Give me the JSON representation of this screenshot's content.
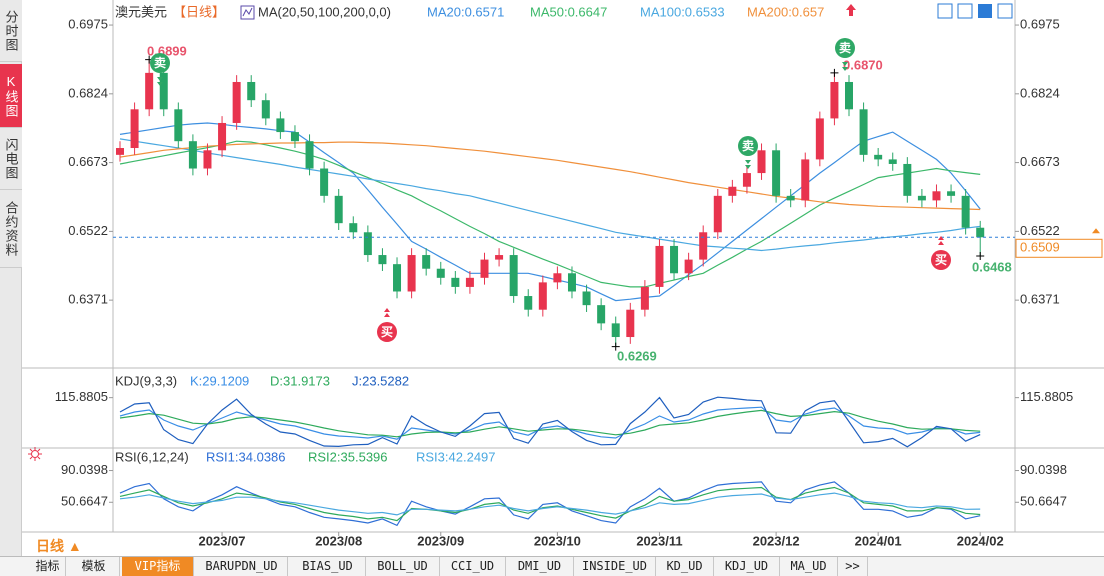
{
  "sidebar": [
    "分时图",
    "K线图",
    "闪电图",
    "合约资料"
  ],
  "toolbar": {
    "period": "日线 ▲",
    "tabs": [
      "指标",
      "模板",
      "VIP指标",
      "BARUPDN_UD",
      "BIAS_UD",
      "BOLL_UD",
      "CCI_UD",
      "DMI_UD",
      "INSIDE_UD",
      "KD_UD",
      "KDJ_UD",
      "MA_UD",
      ">>"
    ]
  },
  "chart_data": [
    {
      "type": "candlestick",
      "title": "澳元美元",
      "subtitle": "【日线】",
      "indicator": "MA(20,50,100,200,0,0)",
      "categories": [
        null,
        null,
        null,
        null,
        null,
        null,
        null,
        "2023/07",
        null,
        null,
        null,
        null,
        null,
        null,
        null,
        "2023/08",
        null,
        null,
        null,
        null,
        null,
        null,
        "2023/09",
        null,
        null,
        null,
        null,
        null,
        null,
        null,
        "2023/10",
        null,
        null,
        null,
        null,
        null,
        null,
        "2023/11",
        null,
        null,
        null,
        null,
        null,
        null,
        null,
        "2023/12",
        null,
        null,
        null,
        null,
        null,
        null,
        "2024/01",
        null,
        null,
        null,
        null,
        null,
        null,
        "2024/02"
      ],
      "open": [
        0.669,
        0.6705,
        0.679,
        0.687,
        0.679,
        0.672,
        0.666,
        0.67,
        0.676,
        0.685,
        0.681,
        0.677,
        0.674,
        0.672,
        0.666,
        0.66,
        0.654,
        0.652,
        0.647,
        0.645,
        0.639,
        0.647,
        0.644,
        0.642,
        0.64,
        0.642,
        0.646,
        0.647,
        0.638,
        0.635,
        0.641,
        0.643,
        0.639,
        0.636,
        0.632,
        0.629,
        0.635,
        0.64,
        0.649,
        0.643,
        0.646,
        0.652,
        0.66,
        0.662,
        0.665,
        0.67,
        0.66,
        0.659,
        0.668,
        0.677,
        0.685,
        0.679,
        0.669,
        0.668,
        0.667,
        0.66,
        0.659,
        0.661,
        0.66,
        0.653
      ],
      "high": [
        0.672,
        0.6805,
        0.6899,
        0.6885,
        0.6805,
        0.6735,
        0.6715,
        0.6775,
        0.6865,
        0.6865,
        0.6825,
        0.6785,
        0.6755,
        0.6735,
        0.6675,
        0.6615,
        0.6555,
        0.6535,
        0.6485,
        0.6465,
        0.6485,
        0.6485,
        0.6455,
        0.6435,
        0.6435,
        0.6475,
        0.6485,
        0.6485,
        0.6395,
        0.6425,
        0.6445,
        0.6445,
        0.6405,
        0.6375,
        0.6335,
        0.6365,
        0.6415,
        0.6505,
        0.6505,
        0.6475,
        0.6535,
        0.6615,
        0.6635,
        0.6665,
        0.6715,
        0.6715,
        0.6615,
        0.6695,
        0.6785,
        0.687,
        0.6865,
        0.6805,
        0.6705,
        0.6695,
        0.6685,
        0.6615,
        0.6625,
        0.6625,
        0.6615,
        0.6545
      ],
      "low": [
        0.6675,
        0.669,
        0.6775,
        0.6775,
        0.6705,
        0.6645,
        0.6645,
        0.6685,
        0.6745,
        0.6795,
        0.6755,
        0.6725,
        0.6705,
        0.6645,
        0.6585,
        0.6525,
        0.6505,
        0.6455,
        0.6435,
        0.6375,
        0.6375,
        0.6425,
        0.6405,
        0.6385,
        0.6385,
        0.6405,
        0.6445,
        0.6365,
        0.6335,
        0.6335,
        0.6395,
        0.6375,
        0.6345,
        0.6305,
        0.6269,
        0.6275,
        0.6335,
        0.6385,
        0.6415,
        0.6415,
        0.6445,
        0.6505,
        0.6585,
        0.6605,
        0.6635,
        0.6585,
        0.6575,
        0.6575,
        0.6665,
        0.6755,
        0.6775,
        0.6675,
        0.6665,
        0.6655,
        0.6585,
        0.6575,
        0.6575,
        0.6585,
        0.6515,
        0.6468
      ],
      "close": [
        0.6705,
        0.679,
        0.687,
        0.679,
        0.672,
        0.666,
        0.67,
        0.676,
        0.685,
        0.681,
        0.677,
        0.674,
        0.672,
        0.666,
        0.66,
        0.654,
        0.652,
        0.647,
        0.645,
        0.639,
        0.647,
        0.644,
        0.642,
        0.64,
        0.642,
        0.646,
        0.647,
        0.638,
        0.635,
        0.641,
        0.643,
        0.639,
        0.636,
        0.632,
        0.629,
        0.635,
        0.64,
        0.649,
        0.643,
        0.646,
        0.652,
        0.66,
        0.662,
        0.665,
        0.67,
        0.66,
        0.659,
        0.668,
        0.677,
        0.685,
        0.679,
        0.669,
        0.668,
        0.667,
        0.66,
        0.659,
        0.661,
        0.66,
        0.653,
        0.6509
      ],
      "up_color": "#e8344e",
      "down_color": "#27a567",
      "price_line_color": "#2f7fd8",
      "price_box_color": "#f08a24",
      "series": [
        {
          "name": "MA20:0.6571",
          "color": "#3d8fe0",
          "values": [
            0.6735,
            0.674,
            0.6745,
            0.675,
            0.6755,
            0.6758,
            0.676,
            0.6757,
            0.6753,
            0.675,
            0.6747,
            0.6743,
            0.674,
            0.6718,
            0.6695,
            0.6673,
            0.665,
            0.6613,
            0.6575,
            0.6538,
            0.65,
            0.6483,
            0.6465,
            0.6448,
            0.643,
            0.643,
            0.643,
            0.643,
            0.643,
            0.6423,
            0.6415,
            0.6408,
            0.64,
            0.6385,
            0.637,
            0.6373,
            0.6377,
            0.638,
            0.6403,
            0.6427,
            0.645,
            0.6475,
            0.65,
            0.6525,
            0.655,
            0.6575,
            0.66,
            0.6625,
            0.665,
            0.6673,
            0.6697,
            0.672,
            0.673,
            0.674,
            0.672,
            0.67,
            0.668,
            0.665,
            0.6611,
            0.6571
          ]
        },
        {
          "name": "MA50:0.6647",
          "color": "#3cb86a",
          "values": [
            0.667,
            0.6676,
            0.6682,
            0.6688,
            0.6694,
            0.67,
            0.6706,
            0.6712,
            0.672,
            0.6718,
            0.6712,
            0.6705,
            0.6698,
            0.669,
            0.668,
            0.6667,
            0.6653,
            0.664,
            0.6627,
            0.6613,
            0.66,
            0.6583,
            0.6567,
            0.655,
            0.6533,
            0.6517,
            0.65,
            0.6487,
            0.6474,
            0.6461,
            0.6449,
            0.6436,
            0.6423,
            0.641,
            0.6405,
            0.64,
            0.64,
            0.6408,
            0.6415,
            0.6423,
            0.643,
            0.6448,
            0.6465,
            0.6483,
            0.65,
            0.652,
            0.654,
            0.656,
            0.658,
            0.6595,
            0.661,
            0.6625,
            0.664,
            0.6645,
            0.665,
            0.6655,
            0.666,
            0.6655,
            0.6651,
            0.6647
          ]
        },
        {
          "name": "MA100:0.6533",
          "color": "#4aa8e0",
          "values": [
            0.6725,
            0.672,
            0.6715,
            0.671,
            0.6705,
            0.67,
            0.6694,
            0.6689,
            0.6684,
            0.6679,
            0.6674,
            0.6669,
            0.6663,
            0.6658,
            0.6653,
            0.6648,
            0.6643,
            0.6637,
            0.6632,
            0.6627,
            0.6622,
            0.6616,
            0.6611,
            0.6605,
            0.66,
            0.6592,
            0.6584,
            0.6576,
            0.6568,
            0.656,
            0.6552,
            0.6544,
            0.6536,
            0.6528,
            0.652,
            0.6515,
            0.651,
            0.6505,
            0.65,
            0.6495,
            0.649,
            0.6488,
            0.6485,
            0.6483,
            0.648,
            0.6483,
            0.6487,
            0.649,
            0.6493,
            0.6497,
            0.65,
            0.6503,
            0.6507,
            0.651,
            0.6513,
            0.6517,
            0.652,
            0.6524,
            0.6529,
            0.6533
          ]
        },
        {
          "name": "MA200:0.657",
          "color": "#f0903c",
          "values": [
            0.6685,
            0.669,
            0.6695,
            0.67,
            0.6703,
            0.6706,
            0.6709,
            0.6711,
            0.6713,
            0.6714,
            0.6715,
            0.6716,
            0.6716,
            0.6717,
            0.6717,
            0.6718,
            0.6718,
            0.6717,
            0.6716,
            0.6714,
            0.6712,
            0.671,
            0.6707,
            0.6704,
            0.6701,
            0.6698,
            0.6694,
            0.669,
            0.6686,
            0.6682,
            0.6678,
            0.6673,
            0.6668,
            0.6663,
            0.6658,
            0.6653,
            0.6647,
            0.6641,
            0.6635,
            0.6629,
            0.6624,
            0.6619,
            0.6614,
            0.6609,
            0.6604,
            0.6599,
            0.6595,
            0.6591,
            0.6587,
            0.6584,
            0.6581,
            0.6579,
            0.6577,
            0.6576,
            0.6575,
            0.6574,
            0.6573,
            0.6572,
            0.6571,
            0.657
          ]
        }
      ],
      "annotations": [
        {
          "text": "0.6899",
          "color": "#e8546c"
        },
        {
          "text": "0.6870",
          "color": "#e8546c"
        },
        {
          "text": "0.6269",
          "color": "#47b26f"
        },
        {
          "text": "0.6468",
          "color": "#47b26f"
        }
      ],
      "signals": [
        {
          "text": "卖",
          "color": "#2fa866"
        },
        {
          "text": "卖",
          "color": "#2fa866"
        },
        {
          "text": "卖",
          "color": "#2fa866"
        },
        {
          "text": "买",
          "color": "#e8344e"
        },
        {
          "text": "买",
          "color": "#e8344e"
        }
      ],
      "ylim": [
        0.6222,
        0.703
      ],
      "yticks": [
        0.6975,
        0.6824,
        0.6673,
        0.6522,
        0.6371
      ]
    },
    {
      "type": "line",
      "title": "KDJ(9,3,3)",
      "series": [
        {
          "name": "K:29.1209",
          "color": "#3a8ee6",
          "values": [
            70,
            80,
            85,
            60,
            45,
            35,
            50,
            65,
            80,
            70,
            60,
            50,
            45,
            35,
            25,
            20,
            18,
            15,
            20,
            12,
            40,
            35,
            30,
            25,
            35,
            50,
            55,
            30,
            22,
            40,
            45,
            35,
            25,
            18,
            15,
            35,
            50,
            70,
            55,
            60,
            75,
            85,
            88,
            90,
            92,
            60,
            55,
            75,
            85,
            90,
            70,
            45,
            40,
            38,
            25,
            30,
            40,
            38,
            25,
            29.1209
          ]
        },
        {
          "name": "D:31.9173",
          "color": "#2eaa5c",
          "values": [
            65,
            70,
            76,
            72,
            62,
            52,
            50,
            55,
            64,
            68,
            65,
            60,
            55,
            48,
            40,
            33,
            28,
            23,
            22,
            18,
            25,
            29,
            30,
            28,
            30,
            37,
            43,
            38,
            32,
            35,
            38,
            37,
            33,
            28,
            23,
            27,
            35,
            47,
            50,
            53,
            60,
            69,
            75,
            80,
            84,
            76,
            69,
            71,
            76,
            81,
            77,
            66,
            57,
            50,
            41,
            37,
            38,
            38,
            34,
            31.9173
          ]
        },
        {
          "name": "J:23.5282",
          "color": "#1f5fbf",
          "values": [
            80,
            100,
            103,
            36,
            11,
            1,
            50,
            85,
            112,
            74,
            50,
            30,
            25,
            9,
            -5,
            -6,
            -2,
            -1,
            16,
            0,
            70,
            47,
            30,
            19,
            45,
            76,
            79,
            14,
            2,
            50,
            59,
            31,
            9,
            -2,
            -1,
            51,
            80,
            116,
            65,
            74,
            105,
            117,
            114,
            110,
            108,
            28,
            27,
            83,
            103,
            108,
            56,
            3,
            6,
            14,
            -7,
            16,
            44,
            38,
            7,
            23.5282
          ]
        }
      ],
      "ylim": [
        -10,
        180
      ],
      "yticks": [
        115.8805
      ]
    },
    {
      "type": "line",
      "title": "RSI(6,12,24)",
      "series": [
        {
          "name": "RSI1:34.0386",
          "color": "#2f6fd6",
          "values": [
            62,
            70,
            74,
            55,
            45,
            40,
            52,
            60,
            70,
            62,
            55,
            48,
            45,
            38,
            32,
            30,
            28,
            25,
            30,
            22,
            52,
            45,
            40,
            36,
            45,
            55,
            56,
            35,
            30,
            48,
            50,
            40,
            34,
            28,
            25,
            45,
            55,
            68,
            52,
            56,
            65,
            72,
            74,
            75,
            76,
            52,
            50,
            66,
            72,
            76,
            62,
            42,
            42,
            40,
            32,
            35,
            44,
            42,
            30,
            34.0386
          ]
        },
        {
          "name": "RSI2:35.5396",
          "color": "#2eaa5c",
          "values": [
            58,
            62,
            66,
            58,
            50,
            46,
            50,
            55,
            62,
            60,
            56,
            51,
            48,
            43,
            38,
            35,
            33,
            30,
            32,
            28,
            43,
            42,
            40,
            38,
            42,
            48,
            50,
            41,
            37,
            44,
            46,
            42,
            38,
            34,
            31,
            40,
            47,
            58,
            52,
            54,
            60,
            65,
            67,
            68,
            69,
            57,
            54,
            62,
            66,
            69,
            62,
            50,
            48,
            46,
            40,
            40,
            44,
            43,
            37,
            35.5396
          ]
        },
        {
          "name": "RSI3:42.2497",
          "color": "#4aa8e0",
          "values": [
            55,
            57,
            60,
            56,
            52,
            49,
            51,
            53,
            57,
            57,
            55,
            52,
            50,
            47,
            44,
            41,
            39,
            37,
            38,
            35,
            42,
            42,
            41,
            40,
            42,
            45,
            47,
            43,
            40,
            43,
            45,
            43,
            41,
            38,
            36,
            40,
            44,
            50,
            48,
            49,
            53,
            57,
            59,
            60,
            61,
            56,
            54,
            57,
            60,
            62,
            58,
            52,
            50,
            49,
            45,
            44,
            46,
            45,
            42,
            42.2497
          ]
        }
      ],
      "ylim": [
        13.8,
        118
      ],
      "yticks": [
        90.0398,
        50.6647
      ]
    }
  ]
}
